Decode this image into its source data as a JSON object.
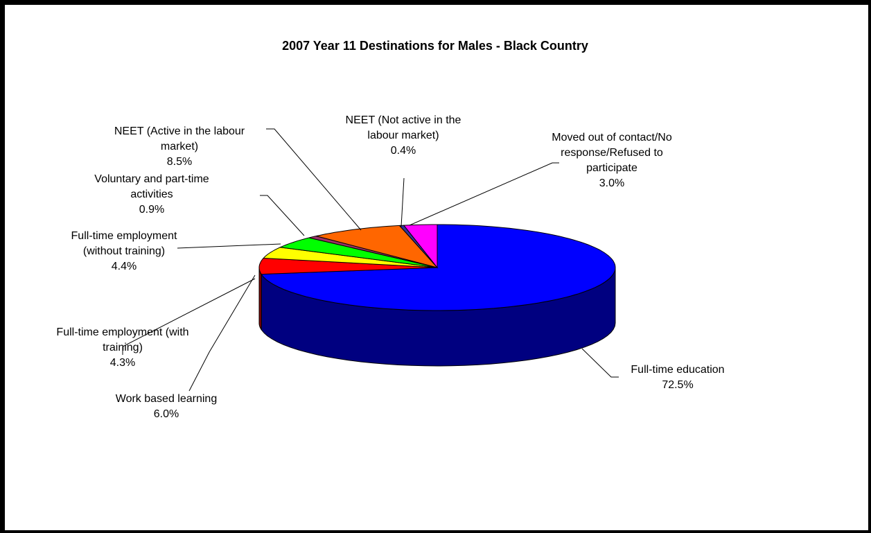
{
  "chart_data": {
    "type": "pie",
    "style": "3d",
    "title": "2007 Year 11 Destinations for Males - Black Country",
    "slices": [
      {
        "name": "Full-time education",
        "value": 72.5,
        "label_lines": [
          "Full-time education",
          "72.5%"
        ],
        "color": "#0000FF",
        "side_color": "#000080"
      },
      {
        "name": "Work based learning",
        "value": 6.0,
        "label_lines": [
          "Work based learning",
          "6.0%"
        ],
        "color": "#FF0000",
        "side_color": "#800000"
      },
      {
        "name": "Full-time employment (with training)",
        "value": 4.3,
        "label_lines": [
          "Full-time employment (with",
          "training)",
          "4.3%"
        ],
        "color": "#FFFF00",
        "side_color": "#808000"
      },
      {
        "name": "Full-time employment (without training)",
        "value": 4.4,
        "label_lines": [
          "Full-time employment",
          "(without training)",
          "4.4%"
        ],
        "color": "#00FF00",
        "side_color": "#008000"
      },
      {
        "name": "Voluntary and part-time activities",
        "value": 0.9,
        "label_lines": [
          "Voluntary and part-time",
          "activities",
          "0.9%"
        ],
        "color": "#993366",
        "side_color": "#4d1a33"
      },
      {
        "name": "NEET (Active in the labour market)",
        "value": 8.5,
        "label_lines": [
          "NEET (Active in the labour",
          "market)",
          "8.5%"
        ],
        "color": "#FF6600",
        "side_color": "#803300"
      },
      {
        "name": "NEET (Not active in the labour market)",
        "value": 0.4,
        "label_lines": [
          "NEET (Not active in the",
          "labour market)",
          "0.4%"
        ],
        "color": "#333399",
        "side_color": "#1a1a4d"
      },
      {
        "name": "Moved out of contact/No response/Refused to participate",
        "value": 3.0,
        "label_lines": [
          "Moved out of contact/No",
          "response/Refused to",
          "participate",
          "3.0%"
        ],
        "color": "#FF00FF",
        "side_color": "#800080"
      }
    ]
  }
}
